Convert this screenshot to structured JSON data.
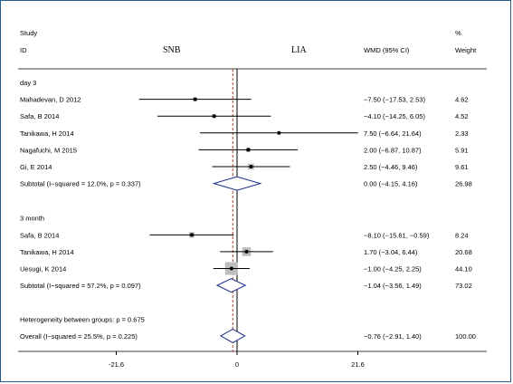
{
  "header": {
    "study": "Study",
    "id": "ID",
    "left_favors": "SNB",
    "right_favors": "LIA",
    "effect": "WMD (95% CI)",
    "pct": "%",
    "weight": "Weight"
  },
  "chart_data": {
    "type": "forest",
    "xlim": [
      -21.6,
      21.6
    ],
    "ticks": [
      "-21.6",
      "0",
      "21.6"
    ],
    "overall_line": -0.76,
    "groups": [
      {
        "label": "day 3",
        "studies": [
          {
            "id": "Mahadevan, D 2012",
            "est": -7.5,
            "lo": -17.53,
            "hi": 2.53,
            "ci": "−7.50 (−17.53, 2.53)",
            "weight": "4.62"
          },
          {
            "id": "Safa, B 2014",
            "est": -4.1,
            "lo": -14.25,
            "hi": 6.05,
            "ci": "−4.10 (−14.25, 6.05)",
            "weight": "4.52"
          },
          {
            "id": "Tanikawa, H 2014",
            "est": 7.5,
            "lo": -6.64,
            "hi": 21.64,
            "ci": "7.50 (−6.64, 21.64)",
            "weight": "2.33"
          },
          {
            "id": "Nagafuchi, M 2015",
            "est": 2.0,
            "lo": -6.87,
            "hi": 10.87,
            "ci": "2.00 (−6.87, 10.87)",
            "weight": "5.91"
          },
          {
            "id": "Gi, E 2014",
            "est": 2.5,
            "lo": -4.46,
            "hi": 9.46,
            "ci": "2.50 (−4.46, 9.46)",
            "weight": "9.61"
          }
        ],
        "subtotal": {
          "label": "Subtotal  (I−squared = 12.0%, p = 0.337)",
          "est": 0.0,
          "lo": -4.15,
          "hi": 4.16,
          "ci": "0.00 (−4.15, 4.16)",
          "weight": "26.98"
        }
      },
      {
        "label": "3 month",
        "studies": [
          {
            "id": "Safa, B 2014",
            "est": -8.1,
            "lo": -15.61,
            "hi": -0.59,
            "ci": "−8.10 (−15.61, −0.59)",
            "weight": "8.24"
          },
          {
            "id": "Tanikawa, H 2014",
            "est": 1.7,
            "lo": -3.04,
            "hi": 6.44,
            "ci": "1.70 (−3.04, 6.44)",
            "weight": "20.68"
          },
          {
            "id": "Uesugi, K 2014",
            "est": -1.0,
            "lo": -4.25,
            "hi": 2.25,
            "ci": "−1.00 (−4.25, 2.25)",
            "weight": "44.10"
          }
        ],
        "subtotal": {
          "label": "Subtotal  (I−squared = 57.2%, p = 0.097)",
          "est": -1.04,
          "lo": -3.56,
          "hi": 1.49,
          "ci": "−1.04 (−3.56, 1.49)",
          "weight": "73.02"
        }
      }
    ],
    "heterogeneity": "Heterogeneity between groups: p = 0.675",
    "overall": {
      "label": "Overall  (I−squared = 25.5%, p = 0.225)",
      "est": -0.76,
      "lo": -2.91,
      "hi": 1.4,
      "ci": "−0.76 (−2.91, 1.40)",
      "weight": "100.00"
    },
    "colors": {
      "box": "#bdbdbd",
      "diamond": "#1a2f8a",
      "overall_line": "#b5402a",
      "frame": "#2a5a8a"
    }
  }
}
